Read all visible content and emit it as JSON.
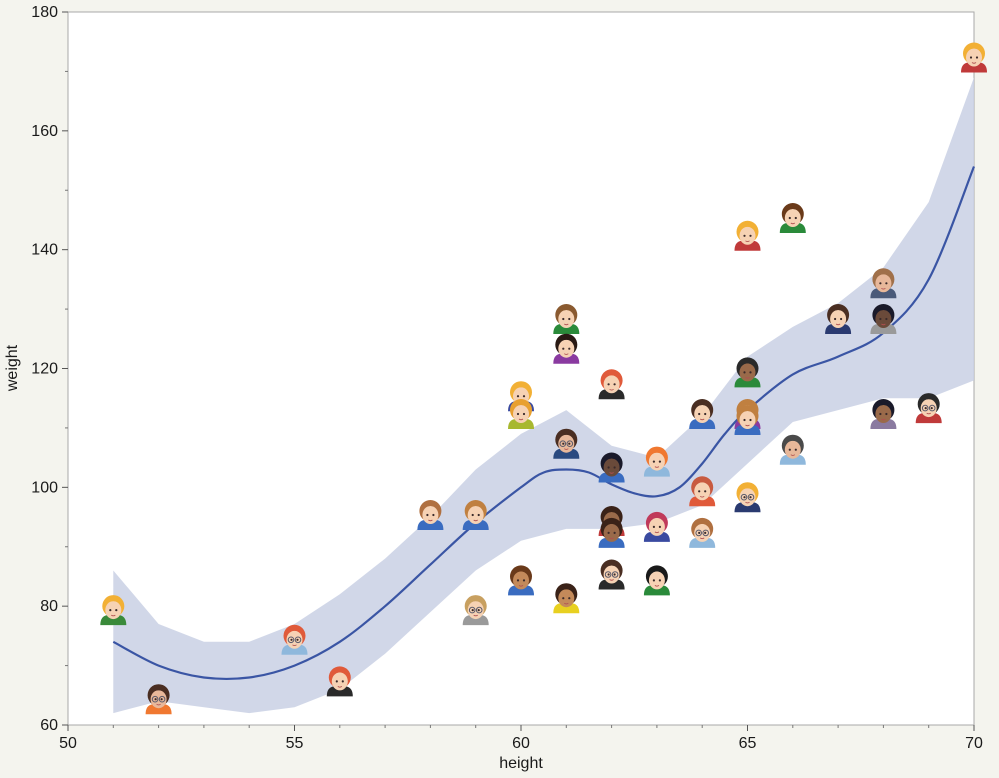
{
  "chart_data": {
    "type": "scatter",
    "title": "",
    "xlabel": "height",
    "ylabel": "weight",
    "xlim": [
      50,
      70
    ],
    "ylim": [
      60,
      180
    ],
    "x_ticks": [
      50,
      55,
      60,
      65,
      70
    ],
    "y_ticks": [
      60,
      80,
      100,
      120,
      140,
      160,
      180
    ],
    "x_tick_labels": [
      "50",
      "55",
      "60",
      "65",
      "70"
    ],
    "y_tick_labels": [
      "60",
      "80",
      "100",
      "120",
      "140",
      "160",
      "180"
    ],
    "grid": false,
    "marker": "person-face-icon",
    "points": [
      {
        "x": 51,
        "y": 79,
        "hair": "#f2b035",
        "skin": "#f6d2b4",
        "shirt": "#3a8a3a",
        "glasses": false
      },
      {
        "x": 52,
        "y": 64,
        "hair": "#4a2e22",
        "skin": "#e8b89a",
        "shirt": "#f07830",
        "glasses": true
      },
      {
        "x": 55,
        "y": 74,
        "hair": "#e05a3a",
        "skin": "#f6d2b4",
        "shirt": "#8fb8dc",
        "glasses": true
      },
      {
        "x": 56,
        "y": 67,
        "hair": "#e05a3a",
        "skin": "#f6d2b4",
        "shirt": "#2a2a2a",
        "glasses": false
      },
      {
        "x": 58,
        "y": 95,
        "hair": "#b07040",
        "skin": "#f6d2b4",
        "shirt": "#3a6cc0",
        "glasses": false
      },
      {
        "x": 59,
        "y": 95,
        "hair": "#c08040",
        "skin": "#f6d2b4",
        "shirt": "#3a6cc0",
        "glasses": false
      },
      {
        "x": 59,
        "y": 79,
        "hair": "#c8a060",
        "skin": "#f6d2b4",
        "shirt": "#9a9a9a",
        "glasses": true
      },
      {
        "x": 60,
        "y": 84,
        "hair": "#6a3a1a",
        "skin": "#c48a5a",
        "shirt": "#3a6cc0",
        "glasses": false
      },
      {
        "x": 60,
        "y": 115,
        "hair": "#f2b035",
        "skin": "#f6d2b4",
        "shirt": "#3a4aa0",
        "glasses": false
      },
      {
        "x": 60,
        "y": 112,
        "hair": "#e8a030",
        "skin": "#f6d2b4",
        "shirt": "#a8b830",
        "glasses": false
      },
      {
        "x": 61,
        "y": 81,
        "hair": "#3a2218",
        "skin": "#c48a5a",
        "shirt": "#e8d020",
        "glasses": false
      },
      {
        "x": 61,
        "y": 128,
        "hair": "#8a5a30",
        "skin": "#f6d2b4",
        "shirt": "#2a8a3a",
        "glasses": false
      },
      {
        "x": 61,
        "y": 123,
        "hair": "#2a1a14",
        "skin": "#f6d2b4",
        "shirt": "#8a3aa0",
        "glasses": false
      },
      {
        "x": 61,
        "y": 107,
        "hair": "#4a2e22",
        "skin": "#e8b89a",
        "shirt": "#2a4a80",
        "glasses": true
      },
      {
        "x": 62,
        "y": 117,
        "hair": "#e05a3a",
        "skin": "#f6d2b4",
        "shirt": "#2a2a2a",
        "glasses": false
      },
      {
        "x": 62,
        "y": 103,
        "hair": "#1a1a2a",
        "skin": "#6a4a3a",
        "shirt": "#3a6cc0",
        "glasses": false
      },
      {
        "x": 62,
        "y": 94,
        "hair": "#3a2218",
        "skin": "#9a6a4a",
        "shirt": "#c03a3a",
        "glasses": false
      },
      {
        "x": 62,
        "y": 92,
        "hair": "#3a2218",
        "skin": "#9a6a4a",
        "shirt": "#3a6cc0",
        "glasses": false
      },
      {
        "x": 62,
        "y": 85,
        "hair": "#4a2e22",
        "skin": "#f6d2b4",
        "shirt": "#2a2a2a",
        "glasses": true
      },
      {
        "x": 63,
        "y": 104,
        "hair": "#f07830",
        "skin": "#f6d2b4",
        "shirt": "#8fb8dc",
        "glasses": false
      },
      {
        "x": 63,
        "y": 93,
        "hair": "#c03a5a",
        "skin": "#f6d2b4",
        "shirt": "#3a4aa0",
        "glasses": false
      },
      {
        "x": 63,
        "y": 84,
        "hair": "#1a1a1a",
        "skin": "#f6d2b4",
        "shirt": "#2a8a3a",
        "glasses": false
      },
      {
        "x": 64,
        "y": 112,
        "hair": "#4a2e22",
        "skin": "#f6d2b4",
        "shirt": "#3a6cc0",
        "glasses": false
      },
      {
        "x": 64,
        "y": 99,
        "hair": "#c85a40",
        "skin": "#f6d2b4",
        "shirt": "#e05a3a",
        "glasses": false
      },
      {
        "x": 64,
        "y": 92,
        "hair": "#b07040",
        "skin": "#f6d2b4",
        "shirt": "#8fb8dc",
        "glasses": true
      },
      {
        "x": 65,
        "y": 119,
        "hair": "#2a2a2a",
        "skin": "#9a6a4a",
        "shirt": "#2a8a3a",
        "glasses": false
      },
      {
        "x": 65,
        "y": 112,
        "hair": "#c08040",
        "skin": "#f6d2b4",
        "shirt": "#8a3aa0",
        "glasses": true
      },
      {
        "x": 65,
        "y": 111,
        "hair": "#c08040",
        "skin": "#f6d2b4",
        "shirt": "#3a6cc0",
        "glasses": false
      },
      {
        "x": 65,
        "y": 98,
        "hair": "#f2b035",
        "skin": "#f6d2b4",
        "shirt": "#2a3a70",
        "glasses": true
      },
      {
        "x": 65,
        "y": 142,
        "hair": "#f2b035",
        "skin": "#f6d2b4",
        "shirt": "#c03a3a",
        "glasses": false
      },
      {
        "x": 66,
        "y": 145,
        "hair": "#6a3a1a",
        "skin": "#f6d2b4",
        "shirt": "#2a8a3a",
        "glasses": false
      },
      {
        "x": 66,
        "y": 106,
        "hair": "#4a4a4a",
        "skin": "#e8b89a",
        "shirt": "#8fb8dc",
        "glasses": false
      },
      {
        "x": 67,
        "y": 128,
        "hair": "#4a2e22",
        "skin": "#f6d2b4",
        "shirt": "#2a3a70",
        "glasses": false
      },
      {
        "x": 68,
        "y": 134,
        "hair": "#a0704a",
        "skin": "#e8b89a",
        "shirt": "#4a5a7a",
        "glasses": false
      },
      {
        "x": 68,
        "y": 128,
        "hair": "#1a1a2a",
        "skin": "#6a4a3a",
        "shirt": "#9a9a9a",
        "glasses": false
      },
      {
        "x": 68,
        "y": 112,
        "hair": "#1a1a2a",
        "skin": "#9a6a4a",
        "shirt": "#8a7aa0",
        "glasses": false
      },
      {
        "x": 69,
        "y": 113,
        "hair": "#2a2a2a",
        "skin": "#f6d2b4",
        "shirt": "#c03a3a",
        "glasses": true
      },
      {
        "x": 70,
        "y": 172,
        "hair": "#f2b035",
        "skin": "#f6d2b4",
        "shirt": "#c03a3a",
        "glasses": false
      }
    ],
    "fit": {
      "type": "smooth-curve",
      "color": "#3a55a4",
      "band_color": "#c9d0e4",
      "curve": [
        [
          51,
          74
        ],
        [
          52,
          70
        ],
        [
          53,
          68
        ],
        [
          54,
          68
        ],
        [
          55,
          70
        ],
        [
          56,
          74
        ],
        [
          57,
          80
        ],
        [
          58,
          87
        ],
        [
          59,
          94
        ],
        [
          60,
          100
        ],
        [
          60.5,
          102.5
        ],
        [
          61,
          103
        ],
        [
          61.5,
          102.5
        ],
        [
          62,
          100.5
        ],
        [
          62.5,
          99
        ],
        [
          63,
          98.5
        ],
        [
          63.5,
          100
        ],
        [
          64,
          104
        ],
        [
          64.5,
          109
        ],
        [
          65,
          113
        ],
        [
          66,
          119
        ],
        [
          67,
          122
        ],
        [
          68,
          126
        ],
        [
          69,
          135
        ],
        [
          70,
          154
        ]
      ],
      "lower": [
        [
          51,
          62
        ],
        [
          52,
          64
        ],
        [
          53,
          63
        ],
        [
          54,
          62
        ],
        [
          55,
          63
        ],
        [
          56,
          66
        ],
        [
          57,
          72
        ],
        [
          58,
          79
        ],
        [
          59,
          86
        ],
        [
          60,
          91
        ],
        [
          61,
          93
        ],
        [
          62,
          93
        ],
        [
          63,
          94
        ],
        [
          64,
          97
        ],
        [
          65,
          104
        ],
        [
          66,
          111
        ],
        [
          67,
          113
        ],
        [
          68,
          115
        ],
        [
          69,
          115
        ],
        [
          70,
          118
        ]
      ],
      "upper": [
        [
          51,
          86
        ],
        [
          52,
          77
        ],
        [
          53,
          74
        ],
        [
          54,
          74
        ],
        [
          55,
          77
        ],
        [
          56,
          82
        ],
        [
          57,
          88
        ],
        [
          58,
          95
        ],
        [
          59,
          103
        ],
        [
          60,
          109
        ],
        [
          61,
          113
        ],
        [
          62,
          107
        ],
        [
          63,
          105
        ],
        [
          64,
          112
        ],
        [
          65,
          122
        ],
        [
          66,
          127
        ],
        [
          67,
          131
        ],
        [
          68,
          137
        ],
        [
          69,
          148
        ],
        [
          70,
          169
        ]
      ]
    }
  }
}
